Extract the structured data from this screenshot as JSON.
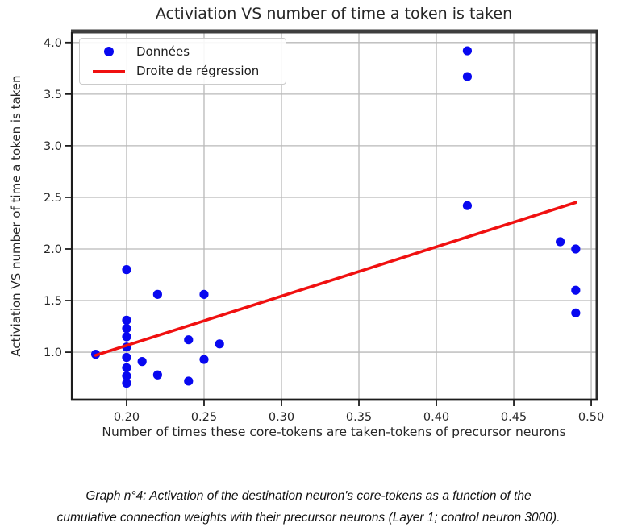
{
  "chart_data": {
    "type": "scatter",
    "title": "Activiation VS number of time a token is taken",
    "xlabel": "Number of times these core-tokens are taken-tokens of precursor neurons",
    "ylabel": "Activiation VS number of time a token is taken",
    "xlim": [
      0.1646,
      0.5031
    ],
    "ylim": [
      0.54,
      4.1
    ],
    "xticks": [
      "0.20",
      "0.25",
      "0.30",
      "0.35",
      "0.40",
      "0.45",
      "0.50"
    ],
    "yticks": [
      "1.0",
      "1.5",
      "2.0",
      "2.5",
      "3.0",
      "3.5",
      "4.0"
    ],
    "grid": true,
    "legend_position": "upper-left",
    "series": [
      {
        "name": "Données",
        "type": "scatter",
        "color": "#0808f0",
        "points": [
          [
            0.18,
            0.98
          ],
          [
            0.2,
            1.8
          ],
          [
            0.2,
            1.31
          ],
          [
            0.2,
            1.23
          ],
          [
            0.2,
            1.15
          ],
          [
            0.2,
            1.05
          ],
          [
            0.2,
            0.95
          ],
          [
            0.2,
            0.85
          ],
          [
            0.2,
            0.77
          ],
          [
            0.2,
            0.7
          ],
          [
            0.21,
            0.91
          ],
          [
            0.22,
            1.56
          ],
          [
            0.22,
            0.78
          ],
          [
            0.24,
            1.12
          ],
          [
            0.24,
            0.72
          ],
          [
            0.25,
            1.56
          ],
          [
            0.25,
            0.93
          ],
          [
            0.26,
            1.08
          ],
          [
            0.42,
            3.92
          ],
          [
            0.42,
            3.67
          ],
          [
            0.42,
            2.42
          ],
          [
            0.48,
            2.07
          ],
          [
            0.49,
            2.0
          ],
          [
            0.49,
            1.6
          ],
          [
            0.49,
            1.38
          ]
        ]
      },
      {
        "name": "Droite de régression",
        "type": "line",
        "color": "#f01010",
        "points": [
          [
            0.18,
            0.97
          ],
          [
            0.49,
            2.45
          ]
        ]
      }
    ],
    "colors": {
      "grid": "#b9b9b9",
      "spine": "#1c1c1c",
      "top_spine": "#3e3e3e",
      "right_spine": "#2d2d2d"
    }
  },
  "caption": {
    "line1": "Graph n°4: Activation of the destination neuron's core-tokens as a function of the",
    "line2": "cumulative connection weights with their precursor neurons (Layer 1; control neuron 3000)."
  }
}
